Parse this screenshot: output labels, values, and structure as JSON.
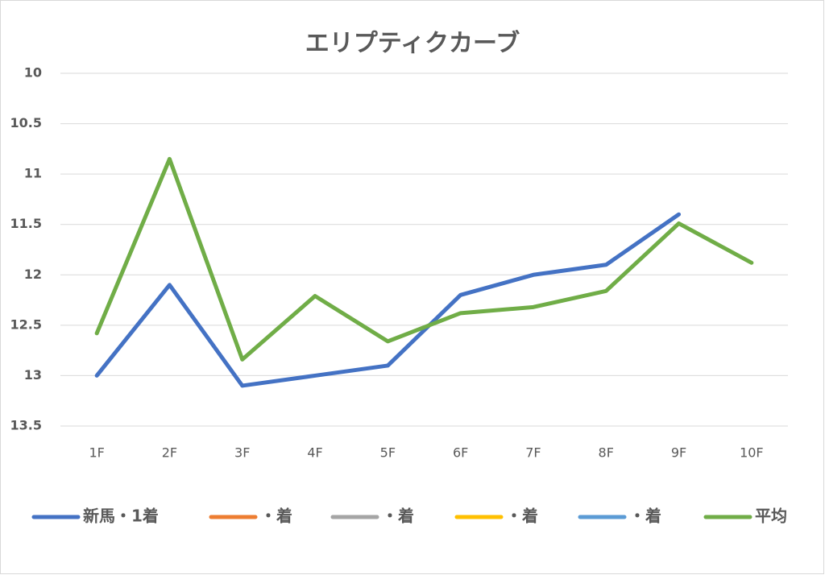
{
  "chart_data": {
    "type": "line",
    "title": "エリプティクカーブ",
    "categories": [
      "1F",
      "2F",
      "3F",
      "4F",
      "5F",
      "6F",
      "7F",
      "8F",
      "9F",
      "10F"
    ],
    "series": [
      {
        "name": "新馬・1着",
        "color": "#4472c4",
        "values": [
          13.0,
          12.1,
          13.1,
          13.0,
          12.9,
          12.2,
          12.0,
          11.9,
          11.4,
          null
        ]
      },
      {
        "name": "・着",
        "color": "#ed7d31",
        "values": [
          null,
          null,
          null,
          null,
          null,
          null,
          null,
          null,
          null,
          null
        ]
      },
      {
        "name": "・着",
        "color": "#a5a5a5",
        "values": [
          null,
          null,
          null,
          null,
          null,
          null,
          null,
          null,
          null,
          null
        ]
      },
      {
        "name": "・着",
        "color": "#ffc000",
        "values": [
          null,
          null,
          null,
          null,
          null,
          null,
          null,
          null,
          null,
          null
        ]
      },
      {
        "name": "・着",
        "color": "#5b9bd5",
        "values": [
          null,
          null,
          null,
          null,
          null,
          null,
          null,
          null,
          null,
          null
        ]
      },
      {
        "name": "平均",
        "color": "#70ad47",
        "values": [
          12.58,
          10.85,
          12.84,
          12.21,
          12.66,
          12.38,
          12.32,
          12.16,
          11.49,
          11.88
        ]
      }
    ],
    "ylim": [
      10,
      13.5
    ],
    "y_inverted": true,
    "yticks": [
      10,
      10.5,
      11,
      11.5,
      12,
      12.5,
      13,
      13.5
    ],
    "grid": true,
    "legend": "bottom"
  }
}
